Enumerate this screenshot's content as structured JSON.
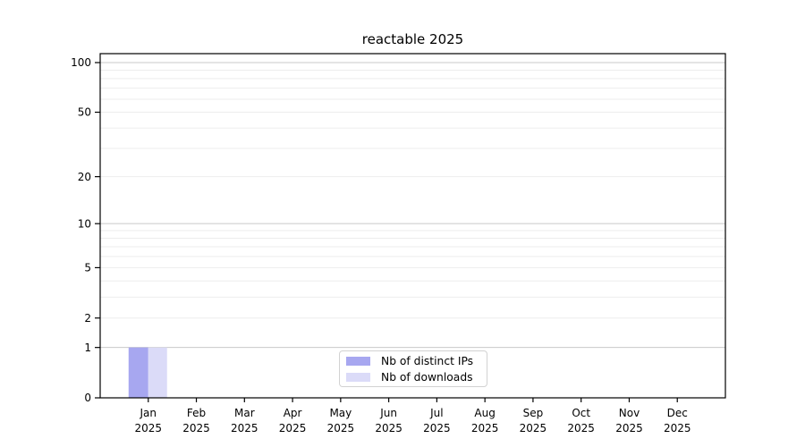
{
  "chart_data": {
    "type": "bar",
    "title": "reactable 2025",
    "categories": [
      "Jan",
      "Feb",
      "Mar",
      "Apr",
      "May",
      "Jun",
      "Jul",
      "Aug",
      "Sep",
      "Oct",
      "Nov",
      "Dec"
    ],
    "category_year": "2025",
    "series": [
      {
        "name": "Nb of distinct IPs",
        "color": "#a7a7f0",
        "values": [
          1,
          0,
          0,
          0,
          0,
          0,
          0,
          0,
          0,
          0,
          0,
          0
        ]
      },
      {
        "name": "Nb of downloads",
        "color": "#dbdbf8",
        "values": [
          1,
          0,
          0,
          0,
          0,
          0,
          0,
          0,
          0,
          0,
          0,
          0
        ]
      }
    ],
    "yscale": "log1p",
    "ylim": [
      0,
      100
    ],
    "ytick_values": [
      0,
      1,
      2,
      5,
      10,
      20,
      50,
      100
    ],
    "ytick_labels": [
      "0",
      "1",
      "2",
      "5",
      "10",
      "20",
      "50",
      "100"
    ],
    "grid_major_values": [
      1,
      10,
      100
    ],
    "grid_minor_values": [
      2,
      3,
      4,
      5,
      6,
      7,
      8,
      9,
      20,
      30,
      40,
      50,
      60,
      70,
      80,
      90
    ],
    "grid": "horizontal",
    "legend_position": "bottom-center"
  },
  "colors": {
    "background": "#ffffff",
    "axis": "#000000",
    "text": "#000000",
    "grid_major": "#c9c9c9",
    "grid_minor": "#ededed",
    "legend_border": "#d2d2d2"
  }
}
